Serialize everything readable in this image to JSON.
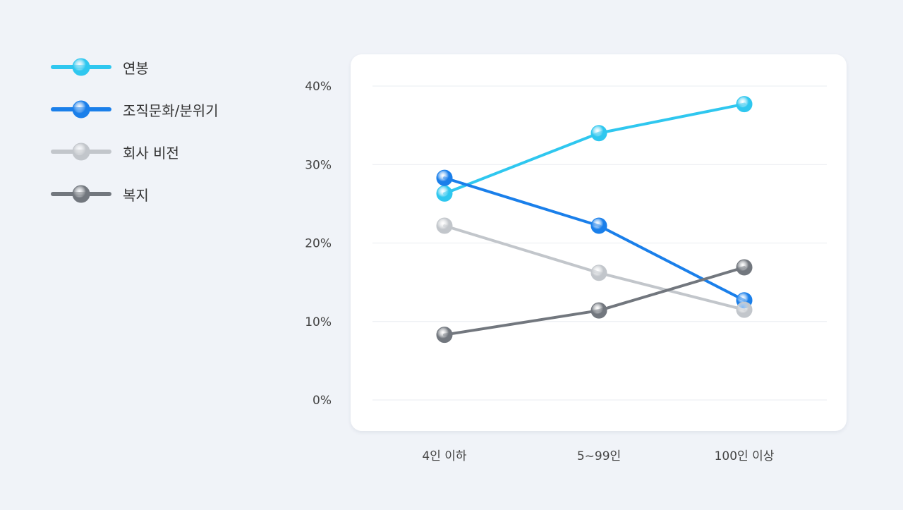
{
  "chart_data": {
    "type": "line",
    "categories": [
      "4인 이하",
      "5~99인",
      "100인 이상"
    ],
    "y_ticks": [
      "0%",
      "10%",
      "20%",
      "30%",
      "40%"
    ],
    "ylim": [
      0,
      40
    ],
    "grid": true,
    "legend_position": "left",
    "series": [
      {
        "name": "연봉",
        "color": "#2fc7ef",
        "values": [
          26.3,
          34,
          37.7
        ]
      },
      {
        "name": "조직문화/분위기",
        "color": "#1a7fea",
        "values": [
          28.3,
          22.2,
          12.7
        ]
      },
      {
        "name": "회사 비전",
        "color": "#c2c6cb",
        "values": [
          22.2,
          16.2,
          11.5
        ]
      },
      {
        "name": "복지",
        "color": "#72777e",
        "values": [
          8.3,
          11.4,
          16.9
        ]
      }
    ]
  }
}
